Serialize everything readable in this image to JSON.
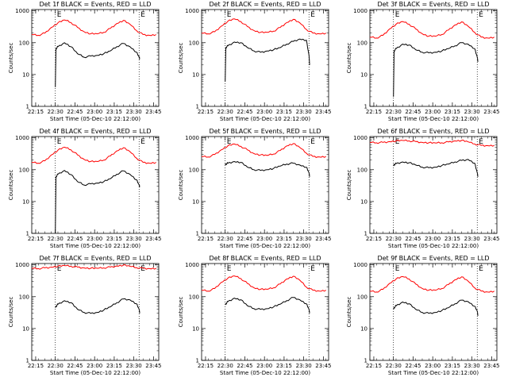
{
  "figure": {
    "grid_rows": 3,
    "grid_cols": 3,
    "x_tick_labels": [
      "22:15",
      "22:30",
      "22:45",
      "23:00",
      "23:15",
      "23:30",
      "23:45"
    ],
    "x_label": "Start Time (05-Dec-10 22:12:00)",
    "y_label": "Counts/sec",
    "y_tick_labels": [
      "1",
      "10",
      "100",
      "1000"
    ],
    "marker_left": "E",
    "marker_right": "E",
    "colors": {
      "events": "#000000",
      "lld": "#ff0000"
    }
  },
  "chart_data": [
    {
      "type": "line",
      "title": "Det 1f BLACK = Events, RED = LLD",
      "xlabel": "Start Time (05-Dec-10 22:12:00)",
      "ylabel": "Counts/sec",
      "x_range_minutes": [
        0,
        97
      ],
      "ylim": [
        1,
        1100
      ],
      "y_scale": "log",
      "x_ticks": [
        "22:15",
        "22:30",
        "22:45",
        "23:00",
        "23:15",
        "23:30",
        "23:45"
      ],
      "vertical_markers_minutes": [
        18,
        82
      ],
      "series": [
        {
          "name": "RED = LLD",
          "color": "#ff0000",
          "x": [
            0,
            5,
            10,
            15,
            20,
            25,
            30,
            35,
            40,
            45,
            50,
            55,
            60,
            65,
            70,
            75,
            80,
            85,
            90,
            95
          ],
          "values": [
            180,
            170,
            200,
            300,
            420,
            520,
            430,
            300,
            220,
            190,
            190,
            210,
            280,
            400,
            500,
            380,
            240,
            180,
            170,
            180
          ]
        },
        {
          "name": "BLACK = Events",
          "color": "#000000",
          "x": [
            18,
            18.5,
            20,
            25,
            30,
            35,
            40,
            45,
            50,
            55,
            60,
            65,
            70,
            75,
            80,
            82,
            82.5
          ],
          "values": [
            4,
            65,
            75,
            100,
            75,
            45,
            35,
            38,
            40,
            45,
            55,
            75,
            95,
            75,
            50,
            35,
            30
          ]
        }
      ]
    },
    {
      "type": "line",
      "title": "Det 2f BLACK = Events, RED = LLD",
      "xlabel": "Start Time (05-Dec-10 22:12:00)",
      "ylabel": "Counts/sec",
      "x_range_minutes": [
        0,
        97
      ],
      "ylim": [
        1,
        1100
      ],
      "y_scale": "log",
      "x_ticks": [
        "22:15",
        "22:30",
        "22:45",
        "23:00",
        "23:15",
        "23:30",
        "23:45"
      ],
      "vertical_markers_minutes": [
        18,
        82
      ],
      "series": [
        {
          "name": "RED = LLD",
          "color": "#ff0000",
          "x": [
            0,
            5,
            10,
            15,
            20,
            25,
            30,
            35,
            40,
            45,
            50,
            55,
            60,
            65,
            70,
            75,
            80,
            85,
            90,
            95
          ],
          "values": [
            200,
            190,
            220,
            330,
            470,
            560,
            460,
            320,
            240,
            210,
            210,
            230,
            300,
            430,
            540,
            420,
            260,
            200,
            190,
            200
          ]
        },
        {
          "name": "BLACK = Events",
          "color": "#000000",
          "x": [
            18,
            18.5,
            20,
            25,
            30,
            35,
            40,
            45,
            50,
            55,
            60,
            65,
            70,
            75,
            80,
            82,
            82.5
          ],
          "values": [
            6,
            70,
            80,
            105,
            100,
            70,
            55,
            50,
            55,
            60,
            70,
            90,
            110,
            130,
            120,
            40,
            20
          ]
        }
      ]
    },
    {
      "type": "line",
      "title": "Det 3f BLACK = Events, RED = LLD",
      "xlabel": "Start Time (05-Dec-10 22:12:00)",
      "ylabel": "Counts/sec",
      "x_range_minutes": [
        0,
        97
      ],
      "ylim": [
        1,
        1100
      ],
      "y_scale": "log",
      "x_ticks": [
        "22:15",
        "22:30",
        "22:45",
        "23:00",
        "23:15",
        "23:30",
        "23:45"
      ],
      "vertical_markers_minutes": [
        18,
        82
      ],
      "series": [
        {
          "name": "RED = LLD",
          "color": "#ff0000",
          "x": [
            0,
            5,
            10,
            15,
            20,
            25,
            30,
            35,
            40,
            45,
            50,
            55,
            60,
            65,
            70,
            75,
            80,
            85,
            90,
            95
          ],
          "values": [
            150,
            140,
            170,
            270,
            380,
            460,
            380,
            270,
            190,
            160,
            160,
            180,
            250,
            360,
            450,
            330,
            210,
            150,
            140,
            150
          ]
        },
        {
          "name": "BLACK = Events",
          "color": "#000000",
          "x": [
            18,
            18.5,
            20,
            25,
            30,
            35,
            40,
            45,
            50,
            55,
            60,
            65,
            70,
            75,
            80,
            82,
            82.5
          ],
          "values": [
            2,
            55,
            65,
            90,
            85,
            60,
            50,
            48,
            50,
            55,
            65,
            80,
            100,
            90,
            65,
            35,
            25
          ]
        }
      ]
    },
    {
      "type": "line",
      "title": "Det 4f BLACK = Events, RED = LLD",
      "xlabel": "Start Time (05-Dec-10 22:12:00)",
      "ylabel": "Counts/sec",
      "x_range_minutes": [
        0,
        97
      ],
      "ylim": [
        1,
        1100
      ],
      "y_scale": "log",
      "x_ticks": [
        "22:15",
        "22:30",
        "22:45",
        "23:00",
        "23:15",
        "23:30",
        "23:45"
      ],
      "vertical_markers_minutes": [
        18,
        82
      ],
      "series": [
        {
          "name": "RED = LLD",
          "color": "#ff0000",
          "x": [
            0,
            5,
            10,
            15,
            20,
            25,
            30,
            35,
            40,
            45,
            50,
            55,
            60,
            65,
            70,
            75,
            80,
            85,
            90,
            95
          ],
          "values": [
            170,
            160,
            190,
            290,
            410,
            510,
            420,
            290,
            210,
            180,
            180,
            200,
            270,
            390,
            490,
            370,
            230,
            170,
            160,
            170
          ]
        },
        {
          "name": "BLACK = Events",
          "color": "#000000",
          "x": [
            18,
            18.5,
            20,
            25,
            30,
            35,
            40,
            45,
            50,
            55,
            60,
            65,
            70,
            75,
            80,
            82,
            82.5
          ],
          "values": [
            1,
            60,
            72,
            95,
            70,
            42,
            33,
            36,
            38,
            42,
            52,
            72,
            92,
            72,
            48,
            33,
            28
          ]
        }
      ]
    },
    {
      "type": "line",
      "title": "Det 5f BLACK = Events, RED = LLD",
      "xlabel": "Start Time (05-Dec-10 22:12:00)",
      "ylabel": "Counts/sec",
      "x_range_minutes": [
        0,
        97
      ],
      "ylim": [
        1,
        1100
      ],
      "y_scale": "log",
      "x_ticks": [
        "22:15",
        "22:30",
        "22:45",
        "23:00",
        "23:15",
        "23:30",
        "23:45"
      ],
      "vertical_markers_minutes": [
        18,
        82
      ],
      "series": [
        {
          "name": "RED = LLD",
          "color": "#ff0000",
          "x": [
            0,
            5,
            10,
            15,
            20,
            25,
            30,
            35,
            40,
            45,
            50,
            55,
            60,
            65,
            70,
            75,
            80,
            85,
            90,
            95
          ],
          "values": [
            260,
            250,
            300,
            420,
            560,
            640,
            540,
            420,
            320,
            290,
            280,
            310,
            400,
            560,
            660,
            500,
            330,
            260,
            250,
            260
          ]
        },
        {
          "name": "BLACK = Events",
          "color": "#000000",
          "x": [
            18,
            18.5,
            20,
            25,
            30,
            35,
            40,
            45,
            50,
            55,
            60,
            65,
            70,
            75,
            80,
            82,
            82.5
          ],
          "values": [
            140,
            150,
            160,
            180,
            170,
            120,
            100,
            95,
            100,
            110,
            130,
            150,
            160,
            140,
            120,
            80,
            60
          ]
        }
      ]
    },
    {
      "type": "line",
      "title": "Det 6f BLACK = Events, RED = LLD",
      "xlabel": "Start Time (05-Dec-10 22:12:00)",
      "ylabel": "Counts/sec",
      "x_range_minutes": [
        0,
        97
      ],
      "ylim": [
        1,
        1100
      ],
      "y_scale": "log",
      "x_ticks": [
        "22:15",
        "22:30",
        "22:45",
        "23:00",
        "23:15",
        "23:30",
        "23:45"
      ],
      "vertical_markers_minutes": [
        18,
        82
      ],
      "series": [
        {
          "name": "RED = LLD",
          "color": "#ff0000",
          "x": [
            0,
            5,
            10,
            15,
            20,
            25,
            30,
            35,
            40,
            45,
            50,
            55,
            60,
            65,
            70,
            75,
            80,
            85,
            90,
            95
          ],
          "values": [
            720,
            700,
            720,
            760,
            800,
            830,
            800,
            760,
            720,
            700,
            690,
            700,
            740,
            800,
            830,
            750,
            640,
            580,
            570,
            580
          ]
        },
        {
          "name": "BLACK = Events",
          "color": "#000000",
          "x": [
            18,
            18.5,
            20,
            25,
            30,
            35,
            40,
            45,
            50,
            55,
            60,
            65,
            70,
            75,
            80,
            82,
            82.5
          ],
          "values": [
            130,
            145,
            155,
            175,
            165,
            140,
            120,
            115,
            120,
            135,
            150,
            175,
            195,
            210,
            160,
            80,
            60
          ]
        }
      ]
    },
    {
      "type": "line",
      "title": "Det 7f BLACK = Events, RED = LLD",
      "xlabel": "Start Time (05-Dec-10 22:12:00)",
      "ylabel": "Counts/sec",
      "x_range_minutes": [
        0,
        97
      ],
      "ylim": [
        1,
        1100
      ],
      "y_scale": "log",
      "x_ticks": [
        "22:15",
        "22:30",
        "22:45",
        "23:00",
        "23:15",
        "23:30",
        "23:45"
      ],
      "vertical_markers_minutes": [
        18,
        82
      ],
      "series": [
        {
          "name": "RED = LLD",
          "color": "#ff0000",
          "x": [
            0,
            5,
            10,
            15,
            20,
            25,
            30,
            35,
            40,
            45,
            50,
            55,
            60,
            65,
            70,
            75,
            80,
            85,
            90,
            95
          ],
          "values": [
            780,
            760,
            800,
            850,
            900,
            950,
            900,
            850,
            800,
            780,
            780,
            800,
            850,
            920,
            980,
            900,
            820,
            780,
            760,
            780
          ]
        },
        {
          "name": "BLACK = Events",
          "color": "#000000",
          "x": [
            18,
            18.5,
            20,
            25,
            30,
            35,
            40,
            45,
            50,
            55,
            60,
            65,
            70,
            75,
            80,
            82,
            82.5
          ],
          "values": [
            45,
            50,
            58,
            75,
            65,
            40,
            32,
            30,
            32,
            38,
            48,
            65,
            85,
            80,
            60,
            40,
            30
          ]
        }
      ]
    },
    {
      "type": "line",
      "title": "Det 8f BLACK = Events, RED = LLD",
      "xlabel": "Start Time (05-Dec-10 22:12:00)",
      "ylabel": "Counts/sec",
      "x_range_minutes": [
        0,
        97
      ],
      "ylim": [
        1,
        1100
      ],
      "y_scale": "log",
      "x_ticks": [
        "22:15",
        "22:30",
        "22:45",
        "23:00",
        "23:15",
        "23:30",
        "23:45"
      ],
      "vertical_markers_minutes": [
        18,
        82
      ],
      "series": [
        {
          "name": "RED = LLD",
          "color": "#ff0000",
          "x": [
            0,
            5,
            10,
            15,
            20,
            25,
            30,
            35,
            40,
            45,
            50,
            55,
            60,
            65,
            70,
            75,
            80,
            85,
            90,
            95
          ],
          "values": [
            160,
            150,
            180,
            280,
            380,
            450,
            370,
            260,
            190,
            170,
            170,
            190,
            250,
            360,
            440,
            330,
            200,
            160,
            150,
            160
          ]
        },
        {
          "name": "BLACK = Events",
          "color": "#000000",
          "x": [
            18,
            18.5,
            20,
            25,
            30,
            35,
            40,
            45,
            50,
            55,
            60,
            65,
            70,
            75,
            80,
            82,
            82.5
          ],
          "values": [
            55,
            60,
            70,
            90,
            80,
            52,
            42,
            40,
            42,
            48,
            58,
            75,
            95,
            80,
            60,
            40,
            30
          ]
        }
      ]
    },
    {
      "type": "line",
      "title": "Det 9f BLACK = Events, RED = LLD",
      "xlabel": "Start Time (05-Dec-10 22:12:00)",
      "ylabel": "Counts/sec",
      "x_range_minutes": [
        0,
        97
      ],
      "ylim": [
        1,
        1100
      ],
      "y_scale": "log",
      "x_ticks": [
        "22:15",
        "22:30",
        "22:45",
        "23:00",
        "23:15",
        "23:30",
        "23:45"
      ],
      "vertical_markers_minutes": [
        18,
        82
      ],
      "series": [
        {
          "name": "RED = LLD",
          "color": "#ff0000",
          "x": [
            0,
            5,
            10,
            15,
            20,
            25,
            30,
            35,
            40,
            45,
            50,
            55,
            60,
            65,
            70,
            75,
            80,
            85,
            90,
            95
          ],
          "values": [
            150,
            140,
            170,
            260,
            360,
            430,
            360,
            250,
            180,
            160,
            160,
            180,
            240,
            340,
            420,
            310,
            190,
            150,
            140,
            150
          ]
        },
        {
          "name": "BLACK = Events",
          "color": "#000000",
          "x": [
            18,
            18.5,
            20,
            25,
            30,
            35,
            40,
            45,
            50,
            55,
            60,
            65,
            70,
            75,
            80,
            82,
            82.5
          ],
          "values": [
            40,
            45,
            52,
            68,
            60,
            40,
            32,
            30,
            32,
            37,
            45,
            60,
            78,
            70,
            50,
            35,
            25
          ]
        }
      ]
    }
  ]
}
